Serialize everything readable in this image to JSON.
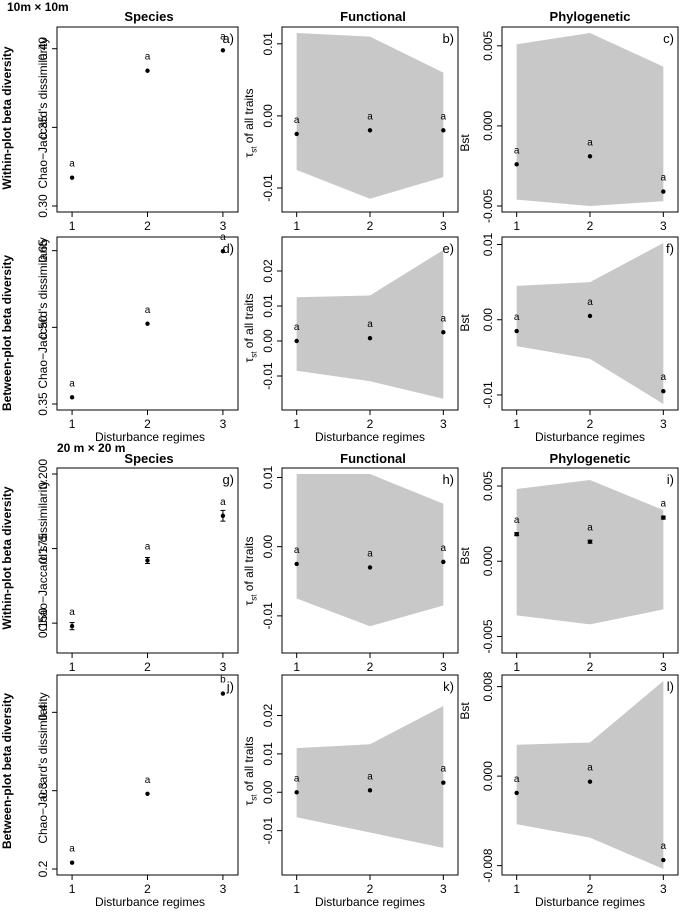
{
  "labels": {
    "section_top": "10m × 10m",
    "section_bottom": "20 m × 20 m",
    "col_species": "Species",
    "col_functional": "Functional",
    "col_phylogenetic": "Phylogenetic",
    "row_within": "Within-plot beta diversity",
    "row_between": "Between-plot beta diversity",
    "xlabel": "Disturbance regimes",
    "ylabel_species": "Chao−Jaccard's dissimilarity",
    "ylabel_functional_main": "τ",
    "ylabel_functional_sub": "st",
    "ylabel_functional_rest": " of all traits",
    "ylabel_phylo": "Bst"
  },
  "colors": {
    "envelope": "#c8c8c8",
    "point": "#000000",
    "axis": "#000000"
  },
  "chart_data": [
    {
      "id": "a",
      "panel_label": "a)",
      "type": "scatter",
      "x": [
        1,
        2,
        3
      ],
      "y": [
        0.318,
        0.386,
        0.399
      ],
      "ylim": [
        0.3,
        0.41
      ],
      "yticks": [
        0.3,
        0.35,
        0.4
      ],
      "yticklabels": [
        "0.30",
        "0.35",
        "0.40"
      ],
      "point_labels": [
        "a",
        "a",
        "a"
      ]
    },
    {
      "id": "b",
      "panel_label": "b)",
      "type": "scatter",
      "x": [
        1,
        2,
        3
      ],
      "y": [
        -0.0025,
        -0.002,
        -0.002
      ],
      "ylim": [
        -0.0125,
        0.0115
      ],
      "yticks": [
        -0.01,
        0.0,
        0.01
      ],
      "yticklabels": [
        "-0.01",
        "0.00",
        "0.01"
      ],
      "point_labels": [
        "a",
        "a",
        "a"
      ],
      "envelope_upper": [
        0.0115,
        0.011,
        0.006
      ],
      "envelope_lower": [
        -0.0075,
        -0.0115,
        -0.0085
      ]
    },
    {
      "id": "c",
      "panel_label": "c)",
      "type": "scatter",
      "x": [
        1,
        2,
        3
      ],
      "y": [
        -0.0024,
        -0.0019,
        -0.0041
      ],
      "ylim": [
        -0.005,
        0.0058
      ],
      "yticks": [
        -0.005,
        0.0,
        0.005
      ],
      "yticklabels": [
        "-0.005",
        "0.000",
        "0.005"
      ],
      "point_labels": [
        "a",
        "a",
        "a"
      ],
      "envelope_upper": [
        0.0051,
        0.0058,
        0.0037
      ],
      "envelope_lower": [
        -0.0046,
        -0.005,
        -0.0047
      ]
    },
    {
      "id": "d",
      "panel_label": "d)",
      "type": "scatter",
      "x": [
        1,
        2,
        3
      ],
      "y": [
        0.363,
        0.507,
        0.649
      ],
      "ylim": [
        0.35,
        0.665
      ],
      "yticks": [
        0.35,
        0.5,
        0.65
      ],
      "yticklabels": [
        "0.35",
        "0.50",
        "0.65"
      ],
      "point_labels": [
        "a",
        "a",
        "a"
      ]
    },
    {
      "id": "e",
      "panel_label": "e)",
      "type": "scatter",
      "x": [
        1,
        2,
        3
      ],
      "y": [
        0.0,
        0.0008,
        0.0025
      ],
      "ylim": [
        -0.018,
        0.028
      ],
      "yticks": [
        -0.01,
        0.0,
        0.01,
        0.02
      ],
      "yticklabels": [
        "-0.01",
        "0.00",
        "0.01",
        "0.02"
      ],
      "point_labels": [
        "a",
        "a",
        "a"
      ],
      "envelope_upper": [
        0.0125,
        0.013,
        0.026
      ],
      "envelope_lower": [
        -0.0085,
        -0.0115,
        -0.0165
      ]
    },
    {
      "id": "f",
      "panel_label": "f)",
      "type": "scatter",
      "x": [
        1,
        2,
        3
      ],
      "y": [
        -0.0015,
        0.0005,
        -0.0095
      ],
      "ylim": [
        -0.0112,
        0.0102
      ],
      "yticks": [
        -0.01,
        0.0,
        0.01
      ],
      "yticklabels": [
        "-0.01",
        "0.00",
        "0.01"
      ],
      "point_labels": [
        "a",
        "a",
        "a"
      ],
      "envelope_upper": [
        0.0045,
        0.005,
        0.0102
      ],
      "envelope_lower": [
        -0.0035,
        -0.0052,
        -0.0112
      ]
    },
    {
      "id": "g",
      "panel_label": "g)",
      "type": "scatter",
      "x": [
        1,
        2,
        3
      ],
      "y": [
        0.149,
        0.171,
        0.186
      ],
      "yerr": [
        0.0012,
        0.001,
        0.0018
      ],
      "ylim": [
        0.142,
        0.2
      ],
      "yticks": [
        0.15,
        0.175,
        0.2
      ],
      "yticklabels": [
        "0.150",
        "0.175",
        "0.200"
      ],
      "point_labels": [
        "a",
        "a",
        "a"
      ]
    },
    {
      "id": "h",
      "panel_label": "h)",
      "type": "scatter",
      "x": [
        1,
        2,
        3
      ],
      "y": [
        -0.0025,
        -0.003,
        -0.0022
      ],
      "ylim": [
        -0.0145,
        0.0105
      ],
      "yticks": [
        -0.01,
        0.0,
        0.01
      ],
      "yticklabels": [
        "-0.01",
        "0.00",
        "0.01"
      ],
      "point_labels": [
        "a",
        "a",
        "a"
      ],
      "envelope_upper": [
        0.0105,
        0.0105,
        0.0062
      ],
      "envelope_lower": [
        -0.0075,
        -0.0115,
        -0.0085
      ]
    },
    {
      "id": "i",
      "panel_label": "i)",
      "type": "scatter",
      "x": [
        1,
        2,
        3
      ],
      "y": [
        0.0018,
        0.0013,
        0.0029
      ],
      "yerr": [
        0.0001,
        0.0001,
        0.0001
      ],
      "ylim": [
        -0.0057,
        0.0058
      ],
      "yticks": [
        -0.005,
        0.0,
        0.005
      ],
      "yticklabels": [
        "-0.005",
        "0.000",
        "0.005"
      ],
      "point_labels": [
        "a",
        "a",
        "a"
      ],
      "envelope_upper": [
        0.0048,
        0.0054,
        0.0034
      ],
      "envelope_lower": [
        -0.0036,
        -0.0042,
        -0.0032
      ]
    },
    {
      "id": "j",
      "panel_label": "j)",
      "type": "scatter",
      "x": [
        1,
        2,
        3
      ],
      "y": [
        0.208,
        0.296,
        0.424
      ],
      "ylim": [
        0.2,
        0.44
      ],
      "yticks": [
        0.2,
        0.3,
        0.4
      ],
      "yticklabels": [
        "0.2",
        "0.3",
        "0.4"
      ],
      "point_labels": [
        "a",
        "a",
        "b"
      ]
    },
    {
      "id": "k",
      "panel_label": "k)",
      "type": "scatter",
      "x": [
        1,
        2,
        3
      ],
      "y": [
        0.0,
        0.0005,
        0.0025
      ],
      "ylim": [
        -0.02,
        0.029
      ],
      "yticks": [
        -0.01,
        0.0,
        0.01,
        0.02
      ],
      "yticklabels": [
        "-0.01",
        "0.00",
        "0.01",
        "0.02"
      ],
      "point_labels": [
        "a",
        "a",
        "a"
      ],
      "envelope_upper": [
        0.0115,
        0.0125,
        0.0225
      ],
      "envelope_lower": [
        -0.0065,
        -0.0105,
        -0.0145
      ]
    },
    {
      "id": "l",
      "panel_label": "l)",
      "type": "scatter",
      "x": [
        1,
        2,
        3
      ],
      "y": [
        -0.0015,
        -0.0005,
        -0.0075
      ],
      "ylim": [
        -0.0083,
        0.0085
      ],
      "yticks": [
        -0.008,
        0.0,
        0.008
      ],
      "yticklabels": [
        "-0.008",
        "0.000",
        "0.008"
      ],
      "point_labels": [
        "a",
        "a",
        "a"
      ],
      "envelope_upper": [
        0.0028,
        0.003,
        0.0085
      ],
      "envelope_lower": [
        -0.0043,
        -0.0055,
        -0.0083
      ]
    }
  ]
}
